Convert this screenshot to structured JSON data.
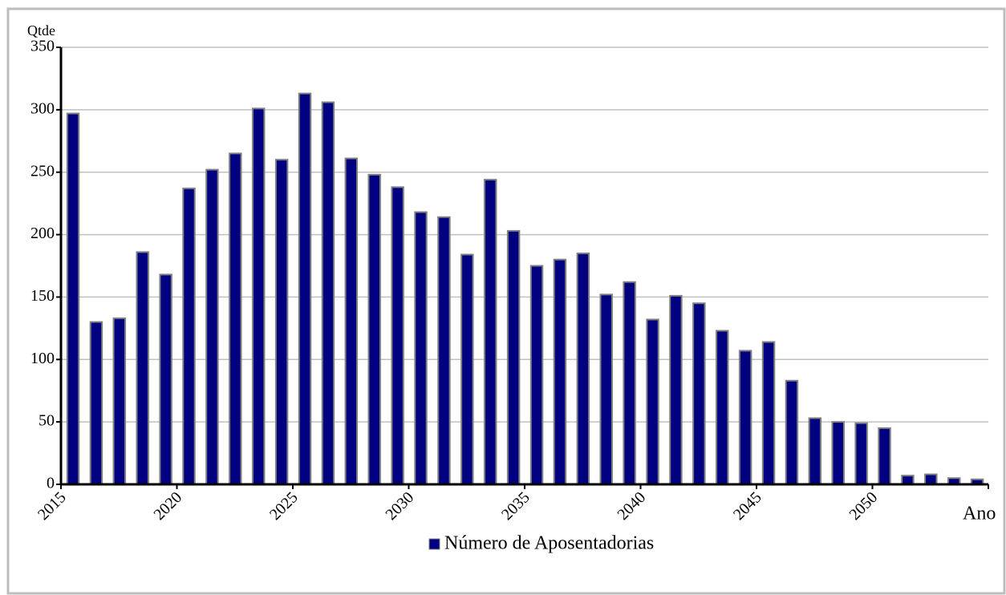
{
  "chart_data": {
    "type": "bar",
    "y_label": "Qtde",
    "x_label": "Ano",
    "categories": [
      "2015",
      null,
      null,
      null,
      null,
      "2020",
      null,
      null,
      null,
      null,
      "2025",
      null,
      null,
      null,
      null,
      "2030",
      null,
      null,
      null,
      null,
      "2035",
      null,
      null,
      null,
      null,
      "2040",
      null,
      null,
      null,
      null,
      "2045",
      null,
      null,
      null,
      null,
      "2050",
      null,
      null,
      null,
      null
    ],
    "series": [
      {
        "name": "Número de Aposentadorias",
        "color": "#000080",
        "values": [
          297,
          130,
          133,
          186,
          168,
          237,
          252,
          265,
          301,
          260,
          313,
          306,
          261,
          248,
          238,
          218,
          214,
          184,
          244,
          203,
          175,
          180,
          185,
          152,
          162,
          132,
          151,
          145,
          123,
          107,
          114,
          83,
          53,
          50,
          49,
          45,
          7,
          8,
          5,
          4
        ]
      }
    ],
    "ylim": [
      0,
      350
    ],
    "yticks": [
      0,
      50,
      100,
      150,
      200,
      250,
      300,
      350
    ],
    "grid": true
  }
}
